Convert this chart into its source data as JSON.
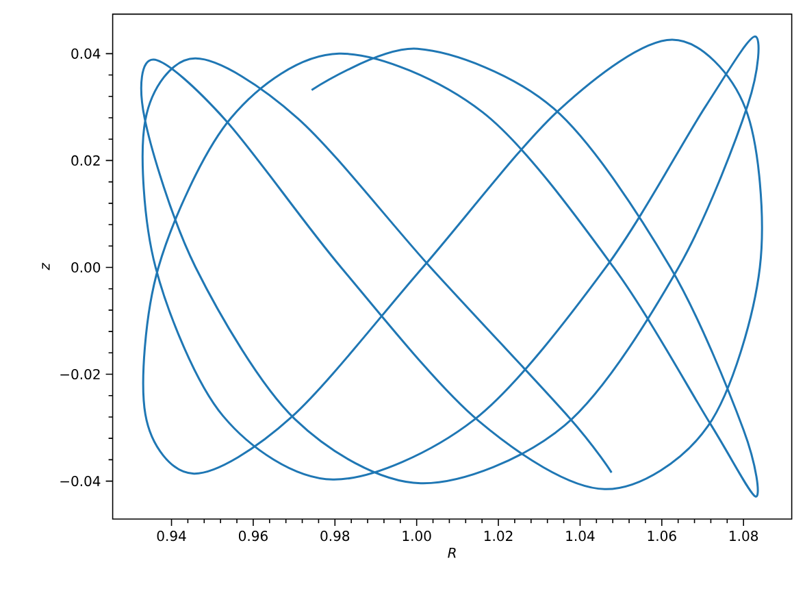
{
  "chart_data": {
    "type": "line",
    "xlabel": "R",
    "ylabel": "z",
    "color": "#1f77b4",
    "xlim": [
      0.9256,
      1.0918
    ],
    "ylim": [
      -0.0471,
      0.0474
    ],
    "xticks": [
      0.94,
      0.96,
      0.98,
      {
        "value": 1.0,
        "label": "1.00"
      },
      1.02,
      1.04,
      1.06,
      1.08
    ],
    "yticks": [
      {
        "value": -0.04,
        "label": "−0.04"
      },
      {
        "value": -0.02,
        "label": "−0.02"
      },
      {
        "value": 0.0,
        "label": "0.00"
      },
      {
        "value": 0.02,
        "label": "0.02"
      },
      {
        "value": 0.04,
        "label": "0.04"
      }
    ],
    "x": [
      0.9743,
      1.0002,
      1.0336,
      1.0621,
      1.08,
      1.083,
      1.0719,
      1.0482,
      1.0162,
      0.981,
      0.9546,
      0.9368,
      0.9336,
      0.9455,
      0.9694,
      1.0015,
      1.0349,
      1.0625,
      1.0805,
      1.084,
      1.0713,
      1.046,
      1.0151,
      0.9815,
      0.9533,
      0.9356,
      0.9334,
      0.9459,
      0.9702,
      1.001,
      1.0362,
      1.0641,
      1.081,
      1.0828,
      1.0706,
      1.0463,
      1.0141,
      0.9795,
      0.9526,
      0.9361,
      0.9336,
      0.9458,
      0.9709,
      1.0034,
      1.0372,
      1.0477
    ],
    "values": [
      0.0332,
      0.0409,
      0.0297,
      0.0,
      -0.0304,
      -0.0429,
      -0.0293,
      0.0,
      0.029,
      0.04,
      0.028,
      0.0,
      -0.0275,
      -0.0386,
      -0.028,
      0.0,
      0.0295,
      0.0426,
      0.0297,
      0.0,
      -0.0297,
      -0.0415,
      -0.0287,
      0.0,
      0.0275,
      0.0389,
      0.028,
      0.0,
      -0.0284,
      -0.0404,
      -0.0296,
      0.0,
      0.0303,
      0.0432,
      0.03,
      0.0,
      -0.0285,
      -0.0397,
      -0.0278,
      0.0,
      0.0276,
      0.0391,
      0.0279,
      0.0,
      -0.028,
      -0.0384
    ]
  }
}
